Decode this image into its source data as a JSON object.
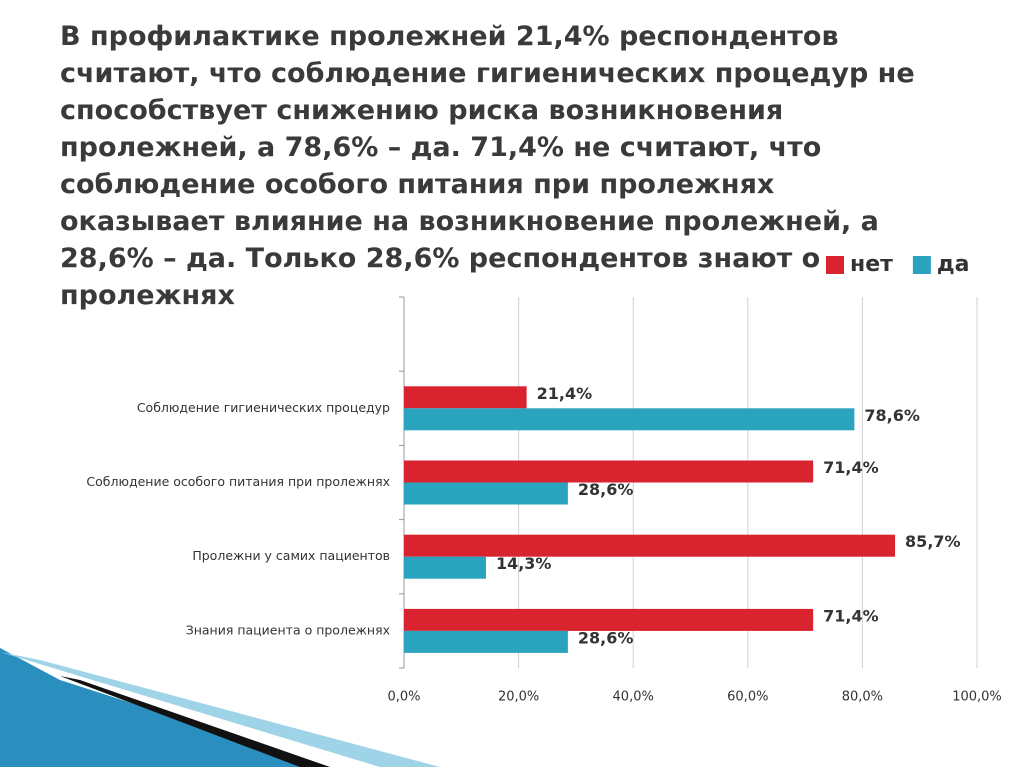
{
  "chart_data": {
    "type": "bar",
    "title": "В профилактике пролежней 21,4% респондентов считают, что соблюдение гигиенических процедур не способствует снижению риска возникновения пролежней, а 78,6% – да. 71,4% не считают, что соблюдение особого питания при пролежнях оказывает влияние на возникновение пролежней, а 28,6% – да. Только 28,6% респондентов знают о пролежнях",
    "categories": [
      null,
      "Соблюдение гигиенических процедур",
      "Соблюдение особого питания при пролежнях",
      "Пролежни у самих пациентов",
      "Знания пациента о пролежнях"
    ],
    "series": [
      {
        "name": "нет",
        "color": "#d9232f",
        "values": [
          null,
          21.4,
          71.4,
          85.7,
          71.4
        ],
        "value_labels": [
          null,
          "21,4%",
          "71,4%",
          "85,7%",
          "71,4%"
        ]
      },
      {
        "name": "да",
        "color": "#2aa3bf",
        "values": [
          null,
          78.6,
          28.6,
          14.3,
          28.6
        ],
        "value_labels": [
          null,
          "78,6%",
          "28,6%",
          "14,3%",
          "28,6%"
        ]
      }
    ],
    "xlim": [
      0,
      100
    ],
    "xticks": [
      {
        "value": 0,
        "label": "0,0%"
      },
      {
        "value": 20,
        "label": "20,0%"
      },
      {
        "value": 40,
        "label": "40,0%"
      },
      {
        "value": 60,
        "label": "60,0%"
      },
      {
        "value": 80,
        "label": "80,0%"
      },
      {
        "value": 100,
        "label": "100,0%"
      }
    ],
    "grid": true,
    "legend": "top-right"
  }
}
